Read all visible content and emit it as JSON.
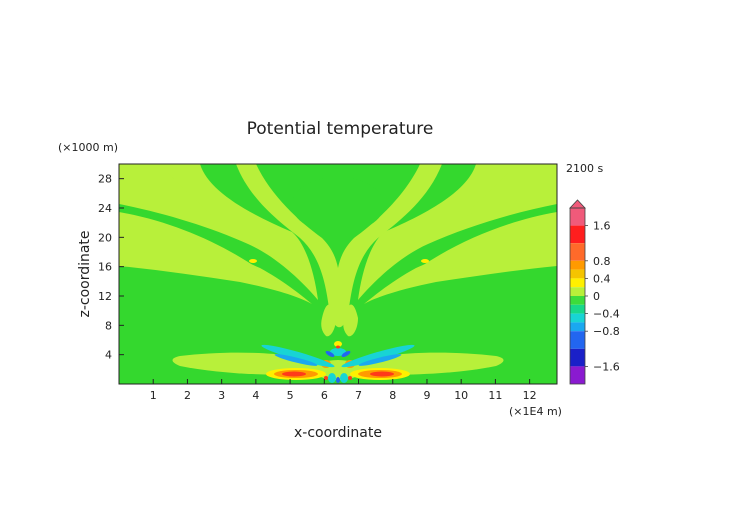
{
  "chart_data": {
    "type": "heatmap",
    "title": "Potential temperature",
    "time_label": "2100 s",
    "xlabel": "x-coordinate",
    "ylabel": "z-coordinate",
    "x_unit": "(×1E4 m)",
    "y_unit": "(×1000 m)",
    "xlim": [
      0,
      12.8
    ],
    "ylim": [
      0,
      30
    ],
    "x_ticks": [
      "1",
      "2",
      "3",
      "4",
      "5",
      "6",
      "7",
      "8",
      "9",
      "10",
      "11",
      "12"
    ],
    "y_ticks": [
      "4",
      "8",
      "12",
      "16",
      "20",
      "24",
      "28"
    ],
    "colorbar": {
      "labels": [
        "1.6",
        "0.8",
        "0.4",
        "0",
        "−0.4",
        "−0.8",
        "−1.6"
      ],
      "extend": "both",
      "levels": [
        {
          "lo": 1.6,
          "hi": 2.0,
          "color": "#f05a7a"
        },
        {
          "lo": 1.2,
          "hi": 1.6,
          "color": "#ff1e1e"
        },
        {
          "lo": 0.8,
          "hi": 1.2,
          "color": "#ff6a2a"
        },
        {
          "lo": 0.6,
          "hi": 0.8,
          "color": "#ff9a00"
        },
        {
          "lo": 0.4,
          "hi": 0.6,
          "color": "#f5c400"
        },
        {
          "lo": 0.2,
          "hi": 0.4,
          "color": "#fff000"
        },
        {
          "lo": 0.0,
          "hi": 0.2,
          "color": "#b8f03a"
        },
        {
          "lo": -0.2,
          "hi": 0.0,
          "color": "#3cdc3c"
        },
        {
          "lo": -0.4,
          "hi": -0.2,
          "color": "#18d88a"
        },
        {
          "lo": -0.6,
          "hi": -0.4,
          "color": "#18d4d4"
        },
        {
          "lo": -0.8,
          "hi": -0.6,
          "color": "#1aa8f0"
        },
        {
          "lo": -1.2,
          "hi": -0.8,
          "color": "#2266f0"
        },
        {
          "lo": -1.6,
          "hi": -1.2,
          "color": "#1a20c8"
        },
        {
          "lo": -2.0,
          "hi": -1.6,
          "color": "#8a1ad0"
        }
      ]
    },
    "field_colors": {
      "background": "#34d82e",
      "band": "#b8f03a",
      "warm": "#ff9a00",
      "hot": "#ff3a1a",
      "cool": "#18d4d4",
      "cold": "#2266f0",
      "yellow": "#fff000"
    }
  }
}
